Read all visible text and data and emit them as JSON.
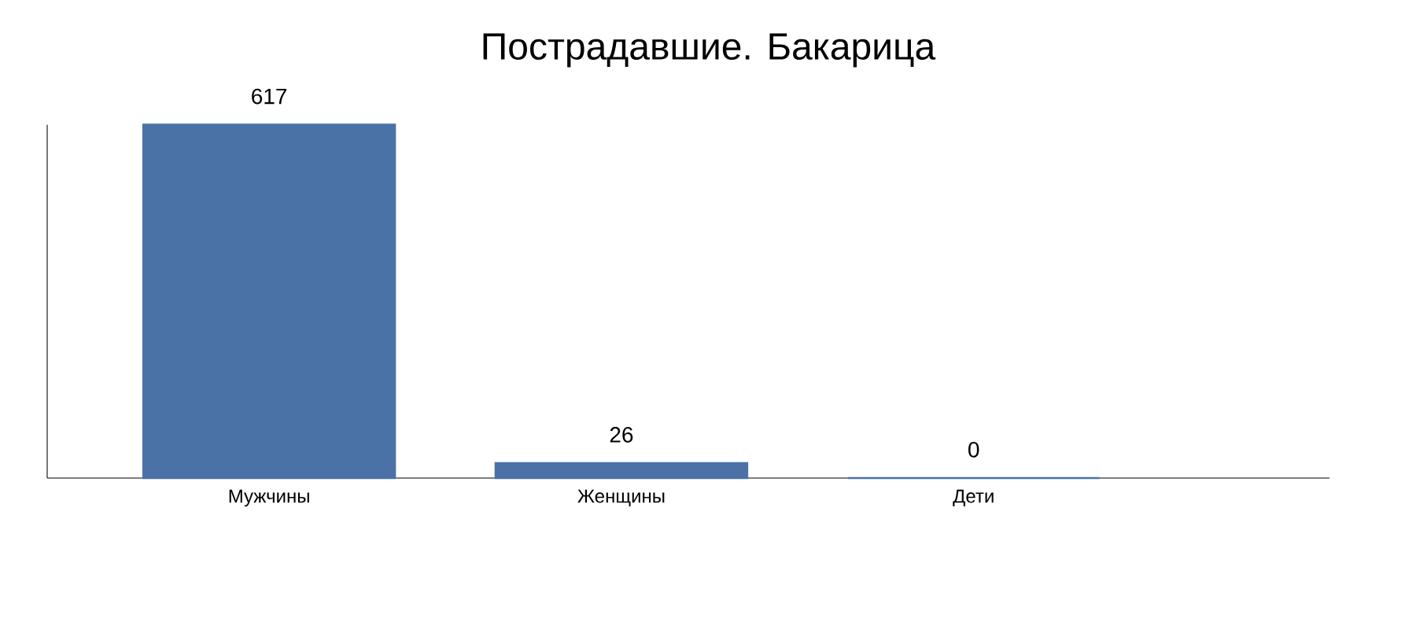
{
  "chart_data": {
    "type": "bar",
    "title": "Пострадавшие. Бакарица",
    "categories": [
      "Мужчины",
      "Женщины",
      "Дети"
    ],
    "values": [
      617,
      26,
      0
    ],
    "color": "#4a72a6",
    "data_labels": true
  }
}
